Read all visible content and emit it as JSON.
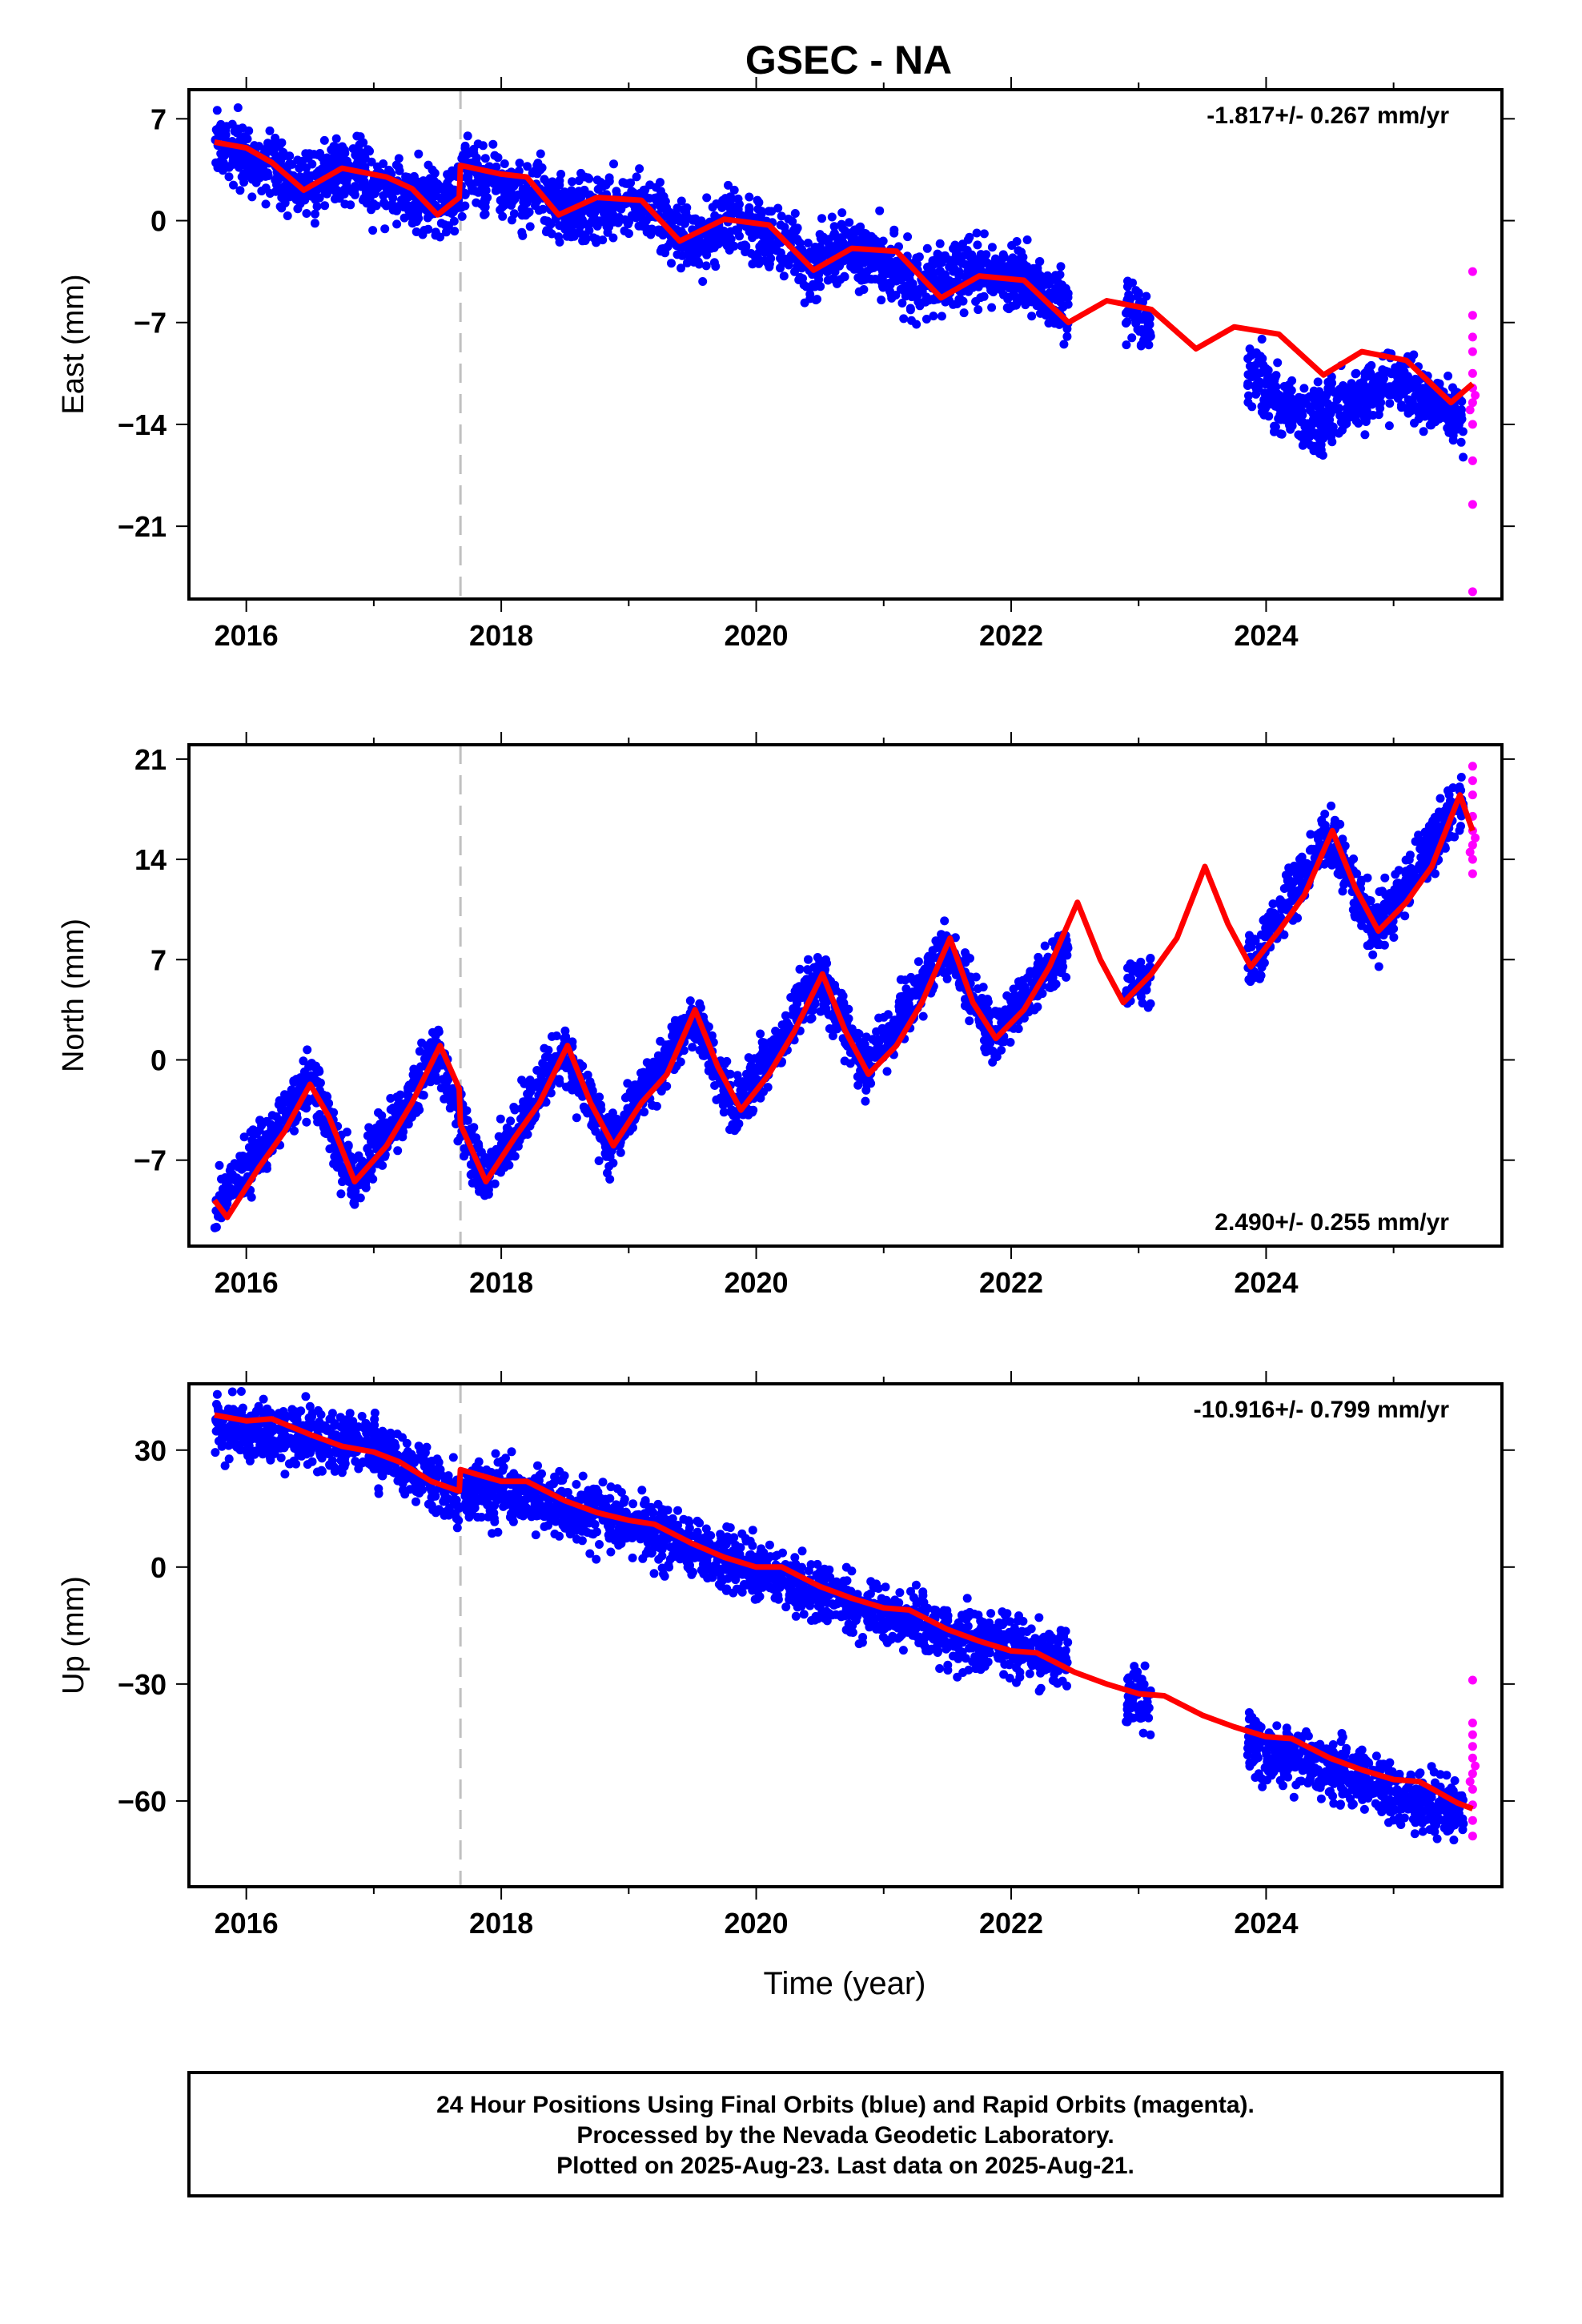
{
  "title": "GSEC - NA",
  "xlabel": "Time (year)",
  "colors": {
    "final": "#0000ff",
    "rapid": "#ff00ff",
    "fit": "#ff0000",
    "event": "#c0c0c0"
  },
  "chart_data": [
    {
      "type": "scatter",
      "component": "East",
      "ylabel": "East (mm)",
      "rate": "-1.817+/- 0.267 mm/yr",
      "xlim": [
        2015.55,
        2025.85
      ],
      "ylim": [
        -26,
        9
      ],
      "xticks": [
        2016,
        2018,
        2020,
        2022,
        2024
      ],
      "yticks": [
        7,
        0,
        -7,
        -14,
        -21
      ],
      "event_x": 2017.68,
      "series": [
        {
          "role": "final",
          "segments": [
            {
              "start": 2015.75,
              "end": 2017.68
            },
            {
              "start": 2017.68,
              "end": 2022.45
            },
            {
              "start": 2022.9,
              "end": 2023.1
            },
            {
              "start": 2023.85,
              "end": 2025.55
            }
          ],
          "trend": [
            [
              2015.75,
              5.5
            ],
            [
              2016.4,
              2.5
            ],
            [
              2016.8,
              3.5
            ],
            [
              2017.3,
              1.5
            ],
            [
              2017.65,
              1.5
            ],
            [
              2017.7,
              3.5
            ],
            [
              2018.3,
              1.5
            ],
            [
              2018.5,
              0.5
            ],
            [
              2019.0,
              1.5
            ],
            [
              2019.5,
              -1.5
            ],
            [
              2019.8,
              0.0
            ],
            [
              2020.1,
              -1.0
            ],
            [
              2020.4,
              -3.0
            ],
            [
              2020.8,
              -2.0
            ],
            [
              2021.3,
              -4.5
            ],
            [
              2021.7,
              -3.5
            ],
            [
              2022.2,
              -4.5
            ],
            [
              2022.45,
              -6.5
            ],
            [
              2022.95,
              -6.0
            ],
            [
              2023.05,
              -7.0
            ],
            [
              2023.9,
              -10.5
            ],
            [
              2024.3,
              -14.0
            ],
            [
              2024.6,
              -13.0
            ],
            [
              2025.0,
              -11.0
            ],
            [
              2025.55,
              -13.5
            ]
          ],
          "spread": 1.6
        },
        {
          "role": "rapid",
          "values": [
            [
              2025.62,
              -3.5
            ],
            [
              2025.62,
              -6.5
            ],
            [
              2025.62,
              -8.0
            ],
            [
              2025.62,
              -9.0
            ],
            [
              2025.62,
              -10.5
            ],
            [
              2025.62,
              -11.5
            ],
            [
              2025.62,
              -12.5
            ],
            [
              2025.62,
              -14.0
            ],
            [
              2025.62,
              -16.5
            ],
            [
              2025.62,
              -19.5
            ],
            [
              2025.62,
              -25.5
            ],
            [
              2025.6,
              -13.0
            ],
            [
              2025.64,
              -12.0
            ]
          ]
        },
        {
          "role": "fit",
          "values": [
            [
              2015.75,
              5.4
            ],
            [
              2016.0,
              5.0
            ],
            [
              2016.2,
              4.0
            ],
            [
              2016.45,
              2.1
            ],
            [
              2016.75,
              3.6
            ],
            [
              2017.1,
              3.0
            ],
            [
              2017.3,
              2.2
            ],
            [
              2017.5,
              0.4
            ],
            [
              2017.67,
              1.6
            ],
            [
              2017.68,
              3.8
            ],
            [
              2018.0,
              3.2
            ],
            [
              2018.2,
              3.0
            ],
            [
              2018.45,
              0.4
            ],
            [
              2018.75,
              1.6
            ],
            [
              2019.1,
              1.4
            ],
            [
              2019.4,
              -1.4
            ],
            [
              2019.75,
              0.1
            ],
            [
              2020.1,
              -0.3
            ],
            [
              2020.45,
              -3.4
            ],
            [
              2020.75,
              -1.9
            ],
            [
              2021.1,
              -2.1
            ],
            [
              2021.45,
              -5.3
            ],
            [
              2021.75,
              -3.8
            ],
            [
              2022.1,
              -4.1
            ],
            [
              2022.45,
              -7.0
            ],
            [
              2022.75,
              -5.5
            ],
            [
              2023.1,
              -6.1
            ],
            [
              2023.45,
              -8.8
            ],
            [
              2023.75,
              -7.3
            ],
            [
              2024.1,
              -7.8
            ],
            [
              2024.45,
              -10.6
            ],
            [
              2024.75,
              -9.0
            ],
            [
              2025.1,
              -9.6
            ],
            [
              2025.45,
              -12.5
            ],
            [
              2025.62,
              -11.2
            ]
          ]
        }
      ]
    },
    {
      "type": "scatter",
      "component": "North",
      "ylabel": "North (mm)",
      "rate": "2.490+/- 0.255 mm/yr",
      "xlim": [
        2015.55,
        2025.85
      ],
      "ylim": [
        -13,
        22
      ],
      "xticks": [
        2016,
        2018,
        2020,
        2022,
        2024
      ],
      "yticks": [
        21,
        14,
        7,
        0,
        -7
      ],
      "event_x": 2017.68,
      "series": [
        {
          "role": "final",
          "segments": [
            {
              "start": 2015.75,
              "end": 2022.45
            },
            {
              "start": 2022.9,
              "end": 2023.1
            },
            {
              "start": 2023.85,
              "end": 2025.55
            }
          ],
          "trend": [
            [
              2015.75,
              -10.5
            ],
            [
              2016.5,
              -1.5
            ],
            [
              2016.85,
              -8.5
            ],
            [
              2017.5,
              0.5
            ],
            [
              2017.85,
              -8.5
            ],
            [
              2018.5,
              0.5
            ],
            [
              2018.85,
              -6.0
            ],
            [
              2019.5,
              3.0
            ],
            [
              2019.85,
              -3.5
            ],
            [
              2020.5,
              6.0
            ],
            [
              2020.85,
              -1.0
            ],
            [
              2021.5,
              8.0
            ],
            [
              2021.85,
              1.5
            ],
            [
              2022.45,
              8.0
            ],
            [
              2022.9,
              4.5
            ],
            [
              2023.1,
              6.0
            ],
            [
              2023.9,
              7.0
            ],
            [
              2024.5,
              16.0
            ],
            [
              2024.85,
              9.0
            ],
            [
              2025.55,
              18.0
            ]
          ],
          "spread": 1.4
        },
        {
          "role": "rapid",
          "values": [
            [
              2025.62,
              13.0
            ],
            [
              2025.62,
              14.0
            ],
            [
              2025.62,
              15.0
            ],
            [
              2025.62,
              16.0
            ],
            [
              2025.62,
              17.0
            ],
            [
              2025.62,
              18.5
            ],
            [
              2025.62,
              19.5
            ],
            [
              2025.62,
              20.5
            ],
            [
              2025.6,
              14.5
            ],
            [
              2025.64,
              15.5
            ]
          ]
        },
        {
          "role": "fit",
          "values": [
            [
              2015.75,
              -9.8
            ],
            [
              2015.85,
              -11.0
            ],
            [
              2016.1,
              -7.5
            ],
            [
              2016.3,
              -5.0
            ],
            [
              2016.5,
              -1.7
            ],
            [
              2016.65,
              -4.0
            ],
            [
              2016.85,
              -8.5
            ],
            [
              2017.1,
              -6.0
            ],
            [
              2017.3,
              -3.0
            ],
            [
              2017.52,
              1.0
            ],
            [
              2017.67,
              -2.0
            ],
            [
              2017.68,
              -4.5
            ],
            [
              2017.88,
              -8.5
            ],
            [
              2018.1,
              -5.5
            ],
            [
              2018.3,
              -3.0
            ],
            [
              2018.52,
              1.0
            ],
            [
              2018.7,
              -3.0
            ],
            [
              2018.88,
              -6.0
            ],
            [
              2019.1,
              -3.0
            ],
            [
              2019.3,
              -1.0
            ],
            [
              2019.52,
              3.5
            ],
            [
              2019.7,
              -0.5
            ],
            [
              2019.88,
              -3.5
            ],
            [
              2020.1,
              -1.0
            ],
            [
              2020.3,
              2.0
            ],
            [
              2020.52,
              6.0
            ],
            [
              2020.7,
              2.0
            ],
            [
              2020.88,
              -1.0
            ],
            [
              2021.1,
              1.0
            ],
            [
              2021.3,
              4.0
            ],
            [
              2021.52,
              8.5
            ],
            [
              2021.7,
              4.0
            ],
            [
              2021.88,
              1.5
            ],
            [
              2022.1,
              3.5
            ],
            [
              2022.3,
              6.5
            ],
            [
              2022.52,
              11.0
            ],
            [
              2022.7,
              7.0
            ],
            [
              2022.88,
              4.0
            ],
            [
              2023.1,
              6.0
            ],
            [
              2023.3,
              8.5
            ],
            [
              2023.52,
              13.5
            ],
            [
              2023.7,
              9.5
            ],
            [
              2023.88,
              6.5
            ],
            [
              2024.1,
              9.0
            ],
            [
              2024.3,
              11.5
            ],
            [
              2024.52,
              16.0
            ],
            [
              2024.7,
              12.0
            ],
            [
              2024.88,
              9.0
            ],
            [
              2025.1,
              11.0
            ],
            [
              2025.3,
              13.5
            ],
            [
              2025.52,
              18.5
            ],
            [
              2025.62,
              16.0
            ]
          ]
        }
      ]
    },
    {
      "type": "scatter",
      "component": "Up",
      "ylabel": "Up (mm)",
      "rate": "-10.916+/- 0.799 mm/yr",
      "xlim": [
        2015.55,
        2025.85
      ],
      "ylim": [
        -82,
        47
      ],
      "xticks": [
        2016,
        2018,
        2020,
        2022,
        2024
      ],
      "yticks": [
        30,
        0,
        -30,
        -60
      ],
      "event_x": 2017.68,
      "series": [
        {
          "role": "final",
          "segments": [
            {
              "start": 2015.75,
              "end": 2017.68
            },
            {
              "start": 2017.68,
              "end": 2022.45
            },
            {
              "start": 2022.9,
              "end": 2023.1
            },
            {
              "start": 2023.85,
              "end": 2025.55
            }
          ],
          "trend": [
            [
              2015.75,
              36.0
            ],
            [
              2016.5,
              33.0
            ],
            [
              2017.0,
              31.0
            ],
            [
              2017.3,
              25.0
            ],
            [
              2017.65,
              18.0
            ],
            [
              2017.7,
              20.0
            ],
            [
              2018.3,
              17.0
            ],
            [
              2019.0,
              11.0
            ],
            [
              2019.5,
              4.0
            ],
            [
              2020.0,
              -1.0
            ],
            [
              2020.5,
              -7.0
            ],
            [
              2021.0,
              -12.0
            ],
            [
              2021.5,
              -17.0
            ],
            [
              2022.0,
              -20.0
            ],
            [
              2022.45,
              -24.0
            ],
            [
              2022.9,
              -33.0
            ],
            [
              2023.1,
              -34.0
            ],
            [
              2023.9,
              -46.0
            ],
            [
              2024.5,
              -52.0
            ],
            [
              2025.0,
              -58.0
            ],
            [
              2025.55,
              -63.0
            ]
          ],
          "spread": 5.5
        },
        {
          "role": "rapid",
          "values": [
            [
              2025.62,
              -29.0
            ],
            [
              2025.62,
              -40.0
            ],
            [
              2025.62,
              -43.0
            ],
            [
              2025.62,
              -46.0
            ],
            [
              2025.62,
              -49.0
            ],
            [
              2025.62,
              -53.0
            ],
            [
              2025.62,
              -57.0
            ],
            [
              2025.62,
              -61.0
            ],
            [
              2025.62,
              -65.0
            ],
            [
              2025.62,
              -69.0
            ],
            [
              2025.6,
              -55.0
            ],
            [
              2025.64,
              -51.0
            ]
          ]
        },
        {
          "role": "fit",
          "values": [
            [
              2015.75,
              39.0
            ],
            [
              2016.0,
              37.5
            ],
            [
              2016.2,
              38.0
            ],
            [
              2016.5,
              34.0
            ],
            [
              2016.75,
              31.0
            ],
            [
              2017.0,
              29.5
            ],
            [
              2017.2,
              27.0
            ],
            [
              2017.45,
              22.0
            ],
            [
              2017.67,
              19.5
            ],
            [
              2017.68,
              25.0
            ],
            [
              2018.0,
              22.0
            ],
            [
              2018.2,
              22.0
            ],
            [
              2018.5,
              17.0
            ],
            [
              2018.75,
              14.0
            ],
            [
              2019.0,
              12.0
            ],
            [
              2019.2,
              11.0
            ],
            [
              2019.5,
              6.0
            ],
            [
              2019.75,
              2.5
            ],
            [
              2020.0,
              0.0
            ],
            [
              2020.2,
              0.0
            ],
            [
              2020.5,
              -5.0
            ],
            [
              2020.75,
              -8.0
            ],
            [
              2021.0,
              -10.5
            ],
            [
              2021.2,
              -11.0
            ],
            [
              2021.5,
              -16.0
            ],
            [
              2021.75,
              -19.0
            ],
            [
              2022.0,
              -21.5
            ],
            [
              2022.2,
              -22.0
            ],
            [
              2022.5,
              -27.0
            ],
            [
              2022.75,
              -30.0
            ],
            [
              2023.0,
              -32.5
            ],
            [
              2023.2,
              -33.0
            ],
            [
              2023.5,
              -38.0
            ],
            [
              2023.75,
              -41.0
            ],
            [
              2024.0,
              -43.5
            ],
            [
              2024.2,
              -44.0
            ],
            [
              2024.5,
              -49.0
            ],
            [
              2024.75,
              -52.0
            ],
            [
              2025.0,
              -54.5
            ],
            [
              2025.2,
              -55.0
            ],
            [
              2025.5,
              -60.5
            ],
            [
              2025.62,
              -62.0
            ]
          ]
        }
      ]
    }
  ],
  "footer": {
    "line1": "24 Hour Positions Using Final Orbits (blue) and Rapid Orbits (magenta).",
    "line2": "Processed by the Nevada Geodetic Laboratory.",
    "line3": "Plotted on 2025-Aug-23. Last data on 2025-Aug-21."
  }
}
